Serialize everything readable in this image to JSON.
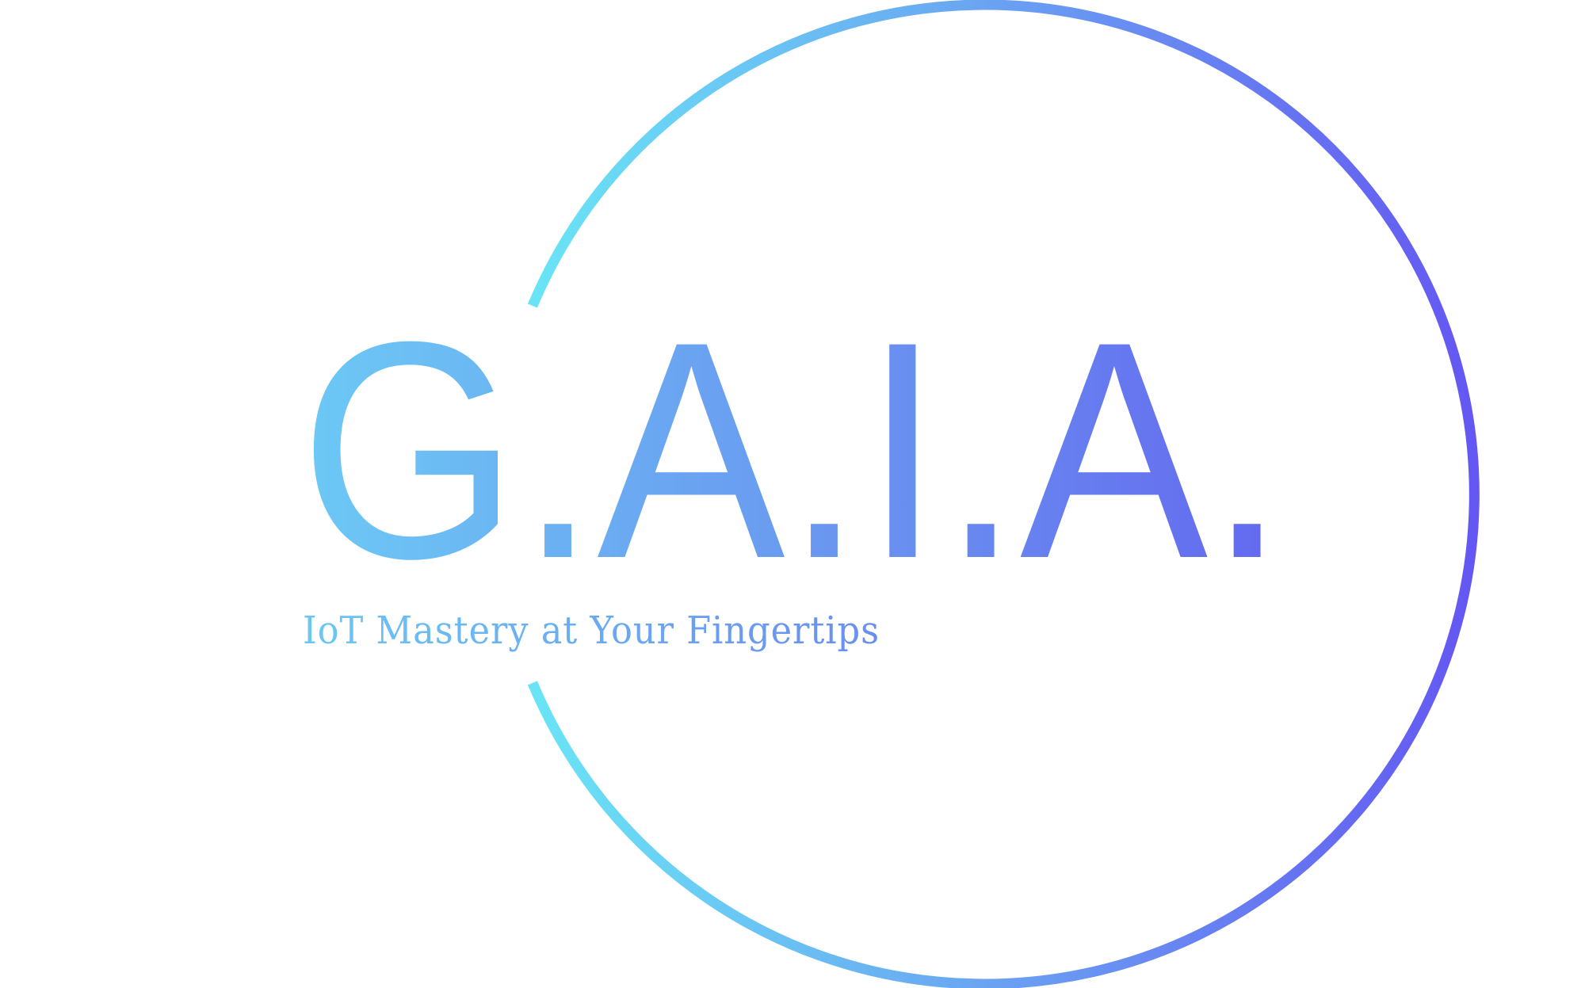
{
  "logo": {
    "wordmark": "G.A.I.A.",
    "tagline": "IoT Mastery at Your Fingertips"
  },
  "colors": {
    "gradient_start": "#6ad8f5",
    "gradient_mid": "#6aa8f0",
    "gradient_end": "#6560f0",
    "background": "#ffffff"
  }
}
